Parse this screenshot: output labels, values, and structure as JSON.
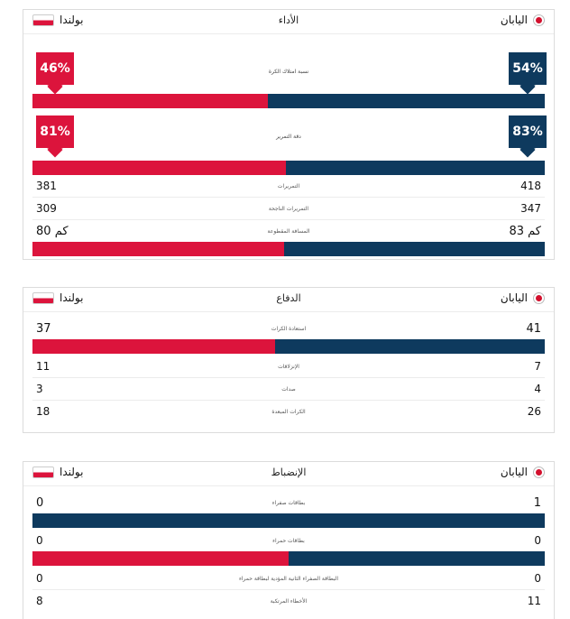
{
  "performance": {
    "title": "الأداء",
    "team_left": "بولندا",
    "team_right": "اليابان",
    "possession": {
      "label": "نسبة امتلاك الكرة",
      "left": "46%",
      "right": "54%",
      "left_value": 46
    },
    "pass_accuracy": {
      "label": "دقة التمرير",
      "left": "81%",
      "right": "83%",
      "left_value": 49.4
    },
    "rows": [
      {
        "label": "التمريرات",
        "left": "381",
        "right": "418"
      },
      {
        "label": "التمريرات الناجحة",
        "left": "309",
        "right": "347"
      }
    ],
    "distance": {
      "label": "المسافة المقطوعة",
      "left": "80 كم",
      "right": "83 كم",
      "left_value": 49.1
    }
  },
  "defense": {
    "title": "الدفاع",
    "team_left": "بولندا",
    "team_right": "اليابان",
    "recoveries": {
      "label": "استعادة الكرات",
      "left": "37",
      "right": "41",
      "left_value": 47.4
    },
    "rows": [
      {
        "label": "الإنزلاقات",
        "left": "11",
        "right": "7"
      },
      {
        "label": "صدات",
        "left": "3",
        "right": "4"
      },
      {
        "label": "الكرات المبعدة",
        "left": "18",
        "right": "26"
      }
    ]
  },
  "discipline": {
    "title": "الإنضباط",
    "team_left": "بولندا",
    "team_right": "اليابان",
    "yellow": {
      "label": "بطاقات صفراء",
      "left": "0",
      "right": "1",
      "left_value": 0
    },
    "red": {
      "label": "بطاقات حمراء",
      "left": "0",
      "right": "0",
      "left_value": 50
    },
    "rows": [
      {
        "label": "البطاقة الصفراء الثانية المؤدية لبطاقة حمراء",
        "left": "0",
        "right": "0"
      },
      {
        "label": "الأخطاء المرتكبة",
        "left": "8",
        "right": "11"
      }
    ]
  }
}
